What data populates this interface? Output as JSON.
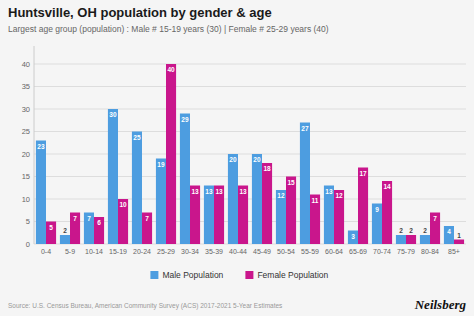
{
  "chart_data": {
    "type": "bar",
    "title": "Huntsville, OH population by gender & age",
    "subtitle": "Largest age group (population) : Male # 15-19 years (30) | Female # 25-29 years (40)",
    "categories": [
      "0-4",
      "5-9",
      "10-14",
      "15-19",
      "20-24",
      "25-29",
      "30-34",
      "35-39",
      "40-44",
      "45-49",
      "50-54",
      "55-59",
      "60-64",
      "65-69",
      "70-74",
      "75-79",
      "80-84",
      "85+"
    ],
    "series": [
      {
        "name": "Male Population",
        "color": "#4d9de0",
        "values": [
          23,
          2,
          7,
          30,
          25,
          19,
          29,
          13,
          20,
          20,
          12,
          27,
          13,
          3,
          9,
          2,
          2,
          4
        ]
      },
      {
        "name": "Female Population",
        "color": "#c9168c",
        "values": [
          5,
          7,
          6,
          10,
          7,
          40,
          13,
          13,
          13,
          18,
          15,
          11,
          12,
          17,
          14,
          2,
          7,
          1
        ]
      }
    ],
    "ylim": [
      0,
      44
    ],
    "yticks": [
      0,
      5,
      10,
      15,
      20,
      25,
      30,
      35,
      40
    ],
    "grid": true,
    "data_labels": true,
    "legend": "bottom",
    "annotations": [
      "Source: U.S. Census Bureau, American Community Survey (ACS) 2017-2021 5-Year Estimates",
      "Neilsberg"
    ]
  }
}
